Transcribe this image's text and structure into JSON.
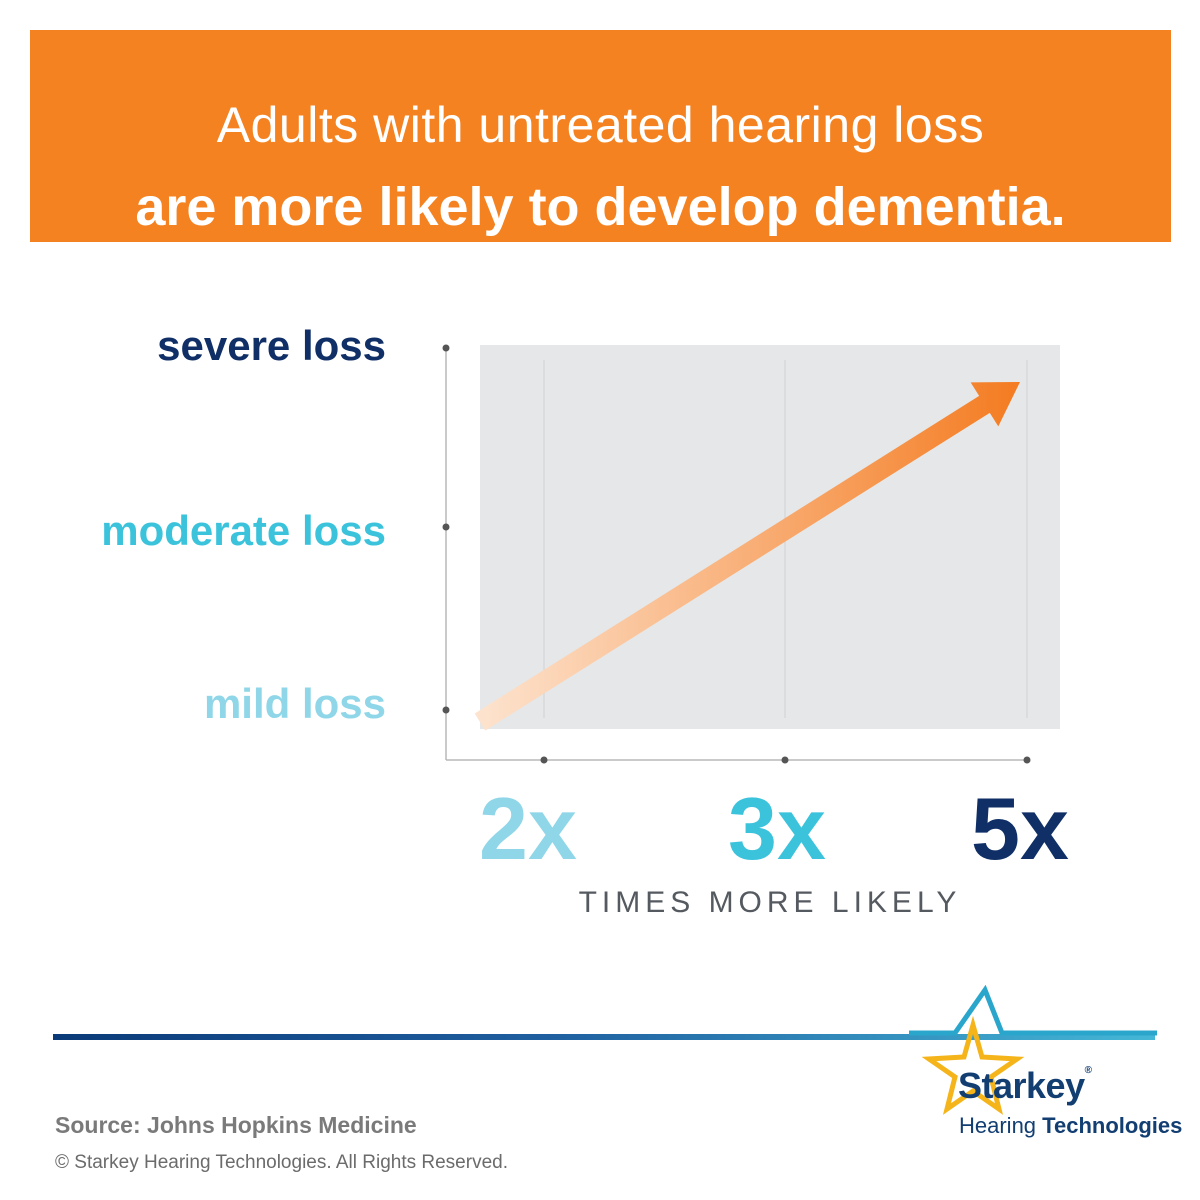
{
  "header": {
    "line1": "Adults with untreated hearing loss",
    "line2": "are more likely to develop dementia."
  },
  "chart_data": {
    "type": "line",
    "y_categories": [
      "mild loss",
      "moderate loss",
      "severe loss"
    ],
    "x_categories": [
      "2x",
      "3x",
      "5x"
    ],
    "xlabel": "TIMES MORE LIKELY",
    "ylabel": "",
    "series": [
      {
        "x": [
          "2x",
          "3x",
          "5x"
        ],
        "y": [
          "mild loss",
          "moderate loss",
          "severe loss"
        ]
      }
    ],
    "grid": true,
    "colors": {
      "mild": "#8fd6e8",
      "moderate": "#3cc3dc",
      "severe": "#0f2f66",
      "arrow_start": "#fde4d0",
      "arrow_end": "#f47b20",
      "plot_bg": "#e6e7e8"
    }
  },
  "footer": {
    "source": "Source: Johns Hopkins Medicine",
    "copyright": "© Starkey Hearing Technologies. All Rights Reserved."
  },
  "logo": {
    "brand": "Starkey",
    "registered": "®",
    "sub_regular": "Hearing",
    "sub_bold": "Technologies",
    "icon": "star-icon"
  }
}
